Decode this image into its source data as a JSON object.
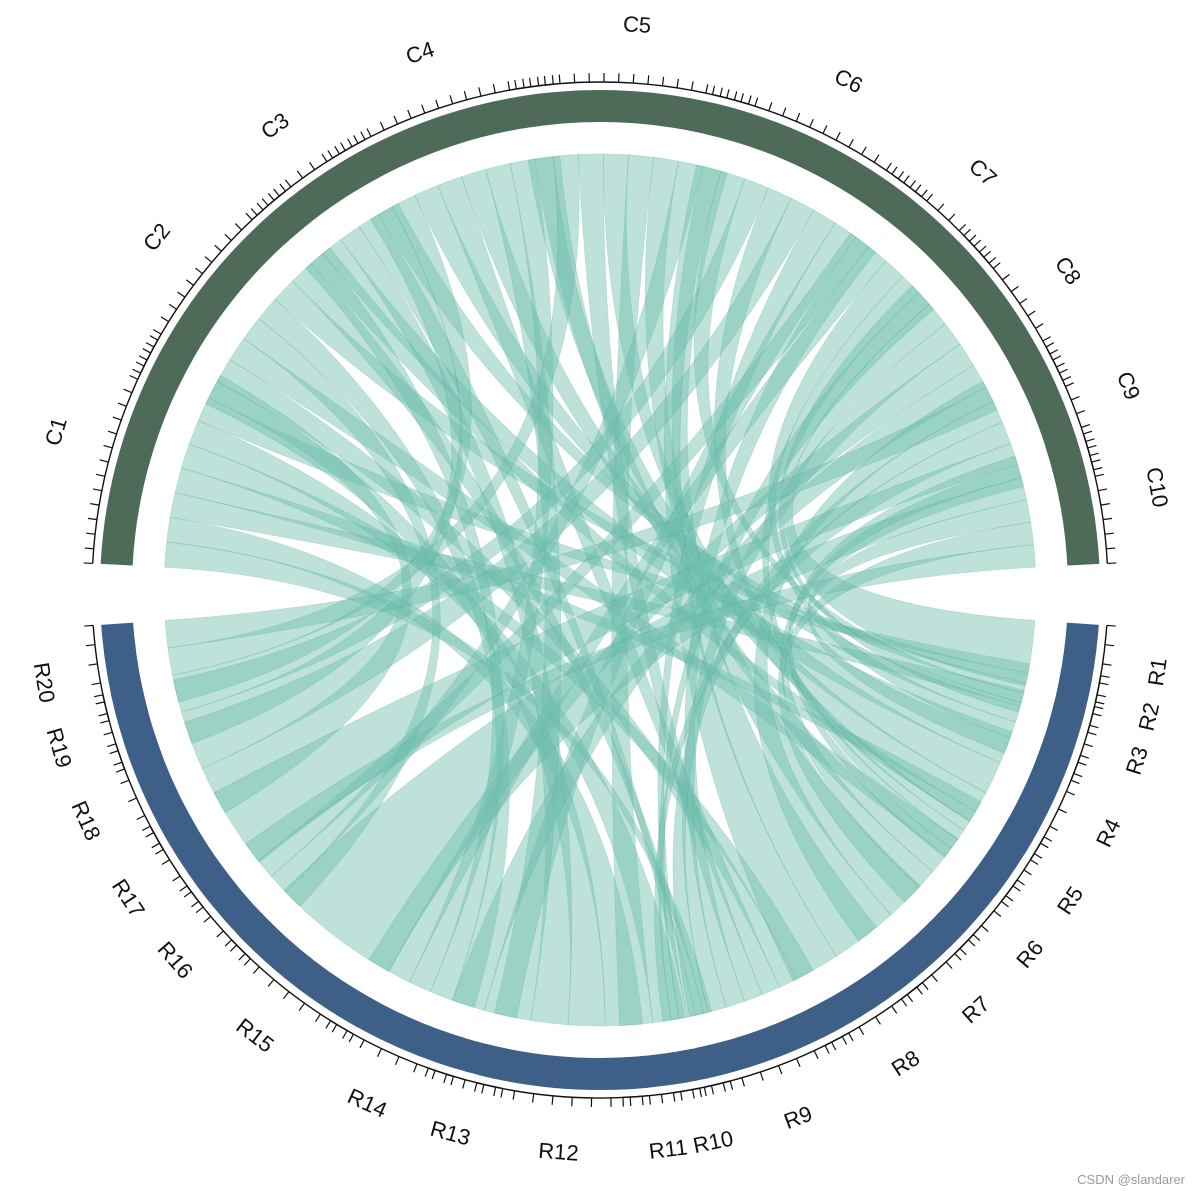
{
  "chart_data": {
    "type": "chord",
    "colors": {
      "column_sector": "#4d6b58",
      "row_sector": "#3e5f87",
      "link": "#6fbfae",
      "link_dense": "#2f8f7b",
      "axis": "#111111"
    },
    "columns": [
      {
        "name": "C1",
        "ticks": 16
      },
      {
        "name": "C2",
        "ticks": 16
      },
      {
        "name": "C3",
        "ticks": 9
      },
      {
        "name": "C4",
        "ticks": 16
      },
      {
        "name": "C5",
        "ticks": 16
      },
      {
        "name": "C6",
        "ticks": 16
      },
      {
        "name": "C7",
        "ticks": 9
      },
      {
        "name": "C8",
        "ticks": 12
      },
      {
        "name": "C9",
        "ticks": 9
      },
      {
        "name": "C10",
        "ticks": 9
      }
    ],
    "rows": [
      {
        "name": "R1",
        "ticks": 4
      },
      {
        "name": "R2",
        "ticks": 3
      },
      {
        "name": "R3",
        "ticks": 4
      },
      {
        "name": "R4",
        "ticks": 6
      },
      {
        "name": "R5",
        "ticks": 4
      },
      {
        "name": "R6",
        "ticks": 5
      },
      {
        "name": "R7",
        "ticks": 5
      },
      {
        "name": "R8",
        "ticks": 6
      },
      {
        "name": "R9",
        "ticks": 8
      },
      {
        "name": "R10",
        "ticks": 3
      },
      {
        "name": "R11",
        "ticks": 4
      },
      {
        "name": "R12",
        "ticks": 9
      },
      {
        "name": "R13",
        "ticks": 4
      },
      {
        "name": "R14",
        "ticks": 7
      },
      {
        "name": "R15",
        "ticks": 8
      },
      {
        "name": "R16",
        "ticks": 5
      },
      {
        "name": "R17",
        "ticks": 5
      },
      {
        "name": "R18",
        "ticks": 6
      },
      {
        "name": "R19",
        "ticks": 4
      },
      {
        "name": "R20",
        "ticks": 5
      }
    ]
  },
  "watermark": "CSDN @slandarer"
}
